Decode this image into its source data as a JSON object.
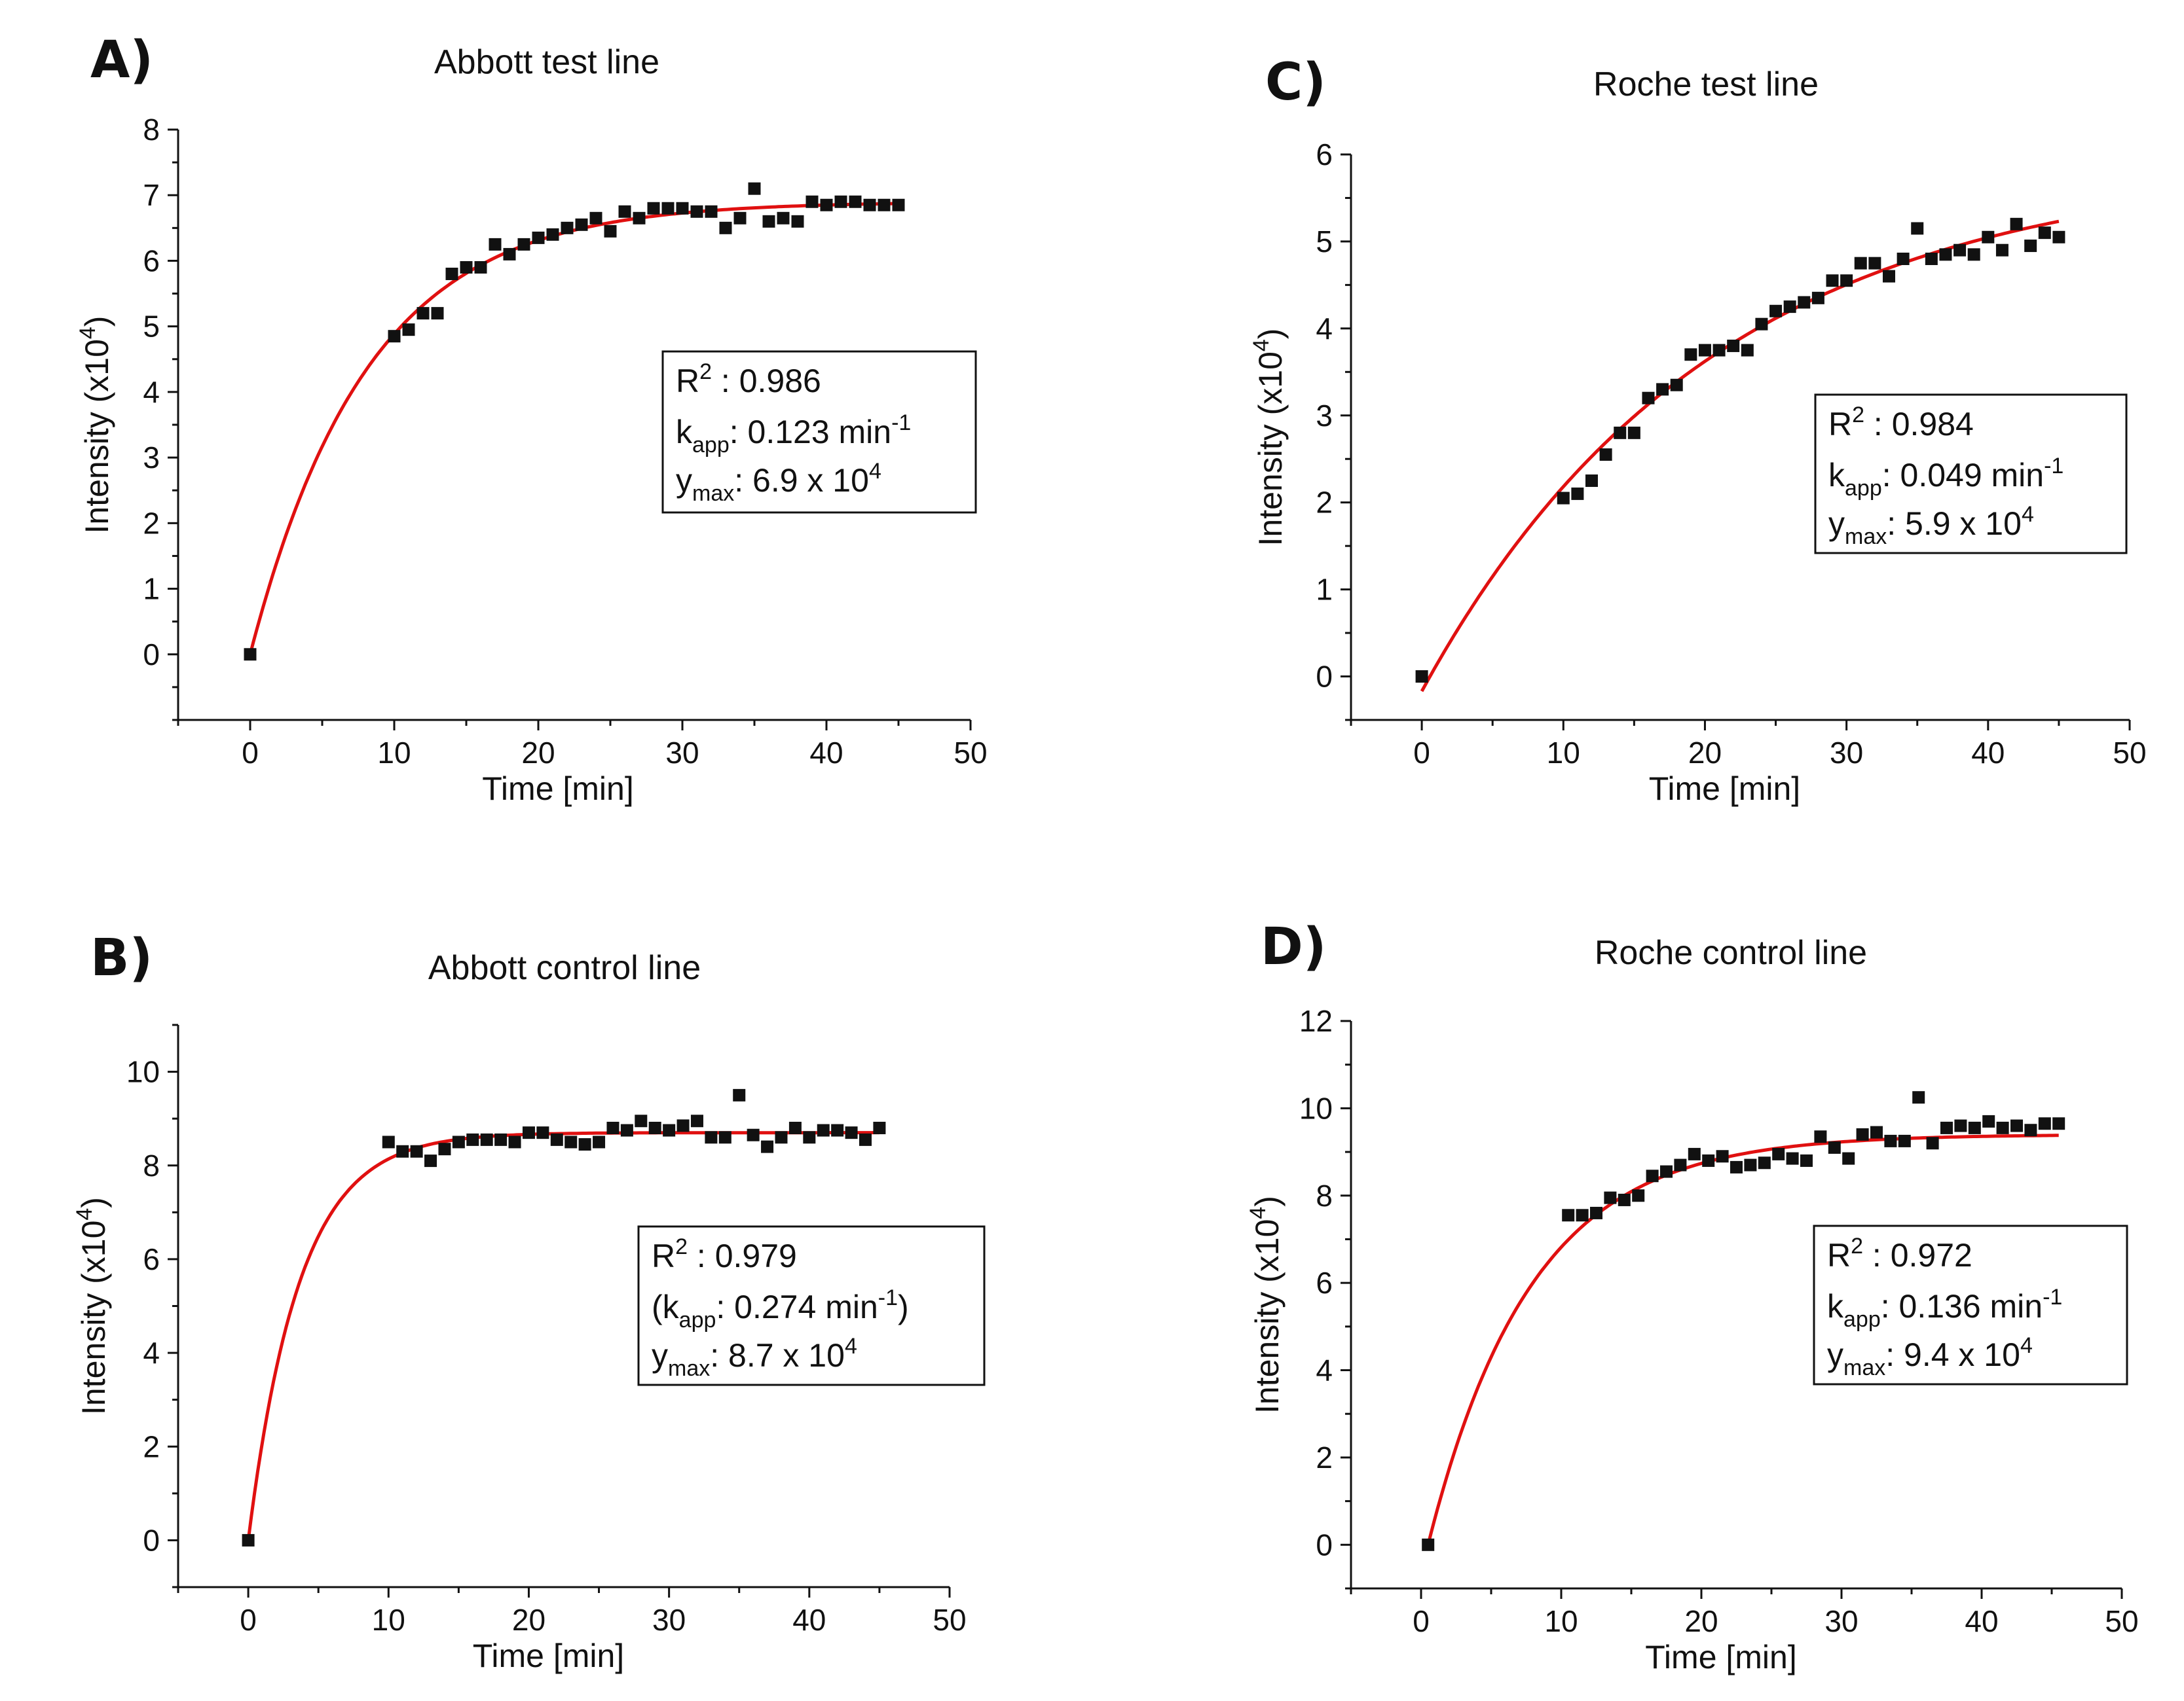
{
  "chart_data": [
    {
      "type": "scatter",
      "panel_label": "A)",
      "title": "Abbott test line",
      "xlabel": "Time [min]",
      "ylabel_main": "Intensity (x10",
      "ylabel_exp": "4",
      "ylabel_close": ")",
      "xlim": [
        -5,
        50
      ],
      "ylim": [
        -1,
        8
      ],
      "xticks": [
        0,
        10,
        20,
        30,
        40,
        50
      ],
      "yticks": [
        0,
        1,
        2,
        3,
        4,
        5,
        6,
        7,
        8
      ],
      "x": [
        0,
        10,
        11,
        12,
        13,
        14,
        15,
        16,
        17,
        18,
        19,
        20,
        21,
        22,
        23,
        24,
        25,
        26,
        27,
        28,
        29,
        30,
        31,
        32,
        33,
        34,
        35,
        36,
        37,
        38,
        39,
        40,
        41,
        42,
        43,
        44,
        45
      ],
      "y": [
        0,
        4.85,
        4.95,
        5.2,
        5.2,
        5.8,
        5.9,
        5.9,
        6.25,
        6.1,
        6.25,
        6.35,
        6.4,
        6.5,
        6.55,
        6.65,
        6.45,
        6.75,
        6.65,
        6.8,
        6.8,
        6.8,
        6.75,
        6.75,
        6.5,
        6.65,
        7.1,
        6.6,
        6.65,
        6.6,
        6.9,
        6.85,
        6.9,
        6.9,
        6.85,
        6.85,
        6.85
      ],
      "fit": {
        "model": "exponential-rise",
        "ymax": 6.9,
        "k": 0.123,
        "x0": 0,
        "x1": 45
      },
      "stats": {
        "r2_label": "R",
        "r2_exp": "2",
        "r2_sep": "  :  ",
        "r2_value": "0.986",
        "k_label": "k",
        "k_sub": "app",
        "k_text": ":  0.123 min",
        "k_exp": "-1",
        "k_close": "",
        "y_label": "y",
        "y_sub": "max",
        "y_text": ":  6.9 x 10",
        "y_exp": "4"
      }
    },
    {
      "type": "scatter",
      "panel_label": "B)",
      "title": "Abbott control line",
      "xlabel": "Time [min]",
      "ylabel_main": "Intensity (x10",
      "ylabel_exp": "4",
      "ylabel_close": ")",
      "xlim": [
        -5,
        50
      ],
      "ylim": [
        -1,
        11
      ],
      "xticks": [
        0,
        10,
        20,
        30,
        40,
        50
      ],
      "yticks": [
        0,
        2,
        4,
        6,
        8,
        10
      ],
      "x": [
        0,
        10,
        11,
        12,
        13,
        14,
        15,
        16,
        17,
        18,
        19,
        20,
        21,
        22,
        23,
        24,
        25,
        26,
        27,
        28,
        29,
        30,
        31,
        32,
        33,
        34,
        35,
        36,
        37,
        38,
        39,
        40,
        41,
        42,
        43,
        44,
        45
      ],
      "y": [
        0,
        8.5,
        8.3,
        8.3,
        8.1,
        8.35,
        8.5,
        8.55,
        8.55,
        8.55,
        8.5,
        8.7,
        8.7,
        8.55,
        8.5,
        8.45,
        8.5,
        8.8,
        8.75,
        8.95,
        8.8,
        8.75,
        8.85,
        8.95,
        8.6,
        8.6,
        9.5,
        8.65,
        8.4,
        8.6,
        8.8,
        8.6,
        8.75,
        8.75,
        8.7,
        8.55,
        8.8
      ],
      "fit": {
        "model": "exponential-rise",
        "ymax": 8.7,
        "k": 0.274,
        "x0": 0,
        "x1": 45
      },
      "stats": {
        "r2_label": "R",
        "r2_exp": "2",
        "r2_sep": "  :  ",
        "r2_value": "0.979",
        "k_label": "(k",
        "k_sub": "app",
        "k_text": ":  0.274 min",
        "k_exp": "-1",
        "k_close": ")",
        "y_label": "y",
        "y_sub": "max",
        "y_text": ":  8.7 x 10",
        "y_exp": "4"
      }
    },
    {
      "type": "scatter",
      "panel_label": "C)",
      "title": "Roche test line",
      "xlabel": "Time [min]",
      "ylabel_main": "Intensity (x10",
      "ylabel_exp": "4",
      "ylabel_close": ")",
      "xlim": [
        -5,
        50
      ],
      "ylim": [
        -0.5,
        6
      ],
      "xticks": [
        0,
        10,
        20,
        30,
        40,
        50
      ],
      "yticks": [
        0,
        1,
        2,
        3,
        4,
        5,
        6
      ],
      "x": [
        0,
        10,
        11,
        12,
        13,
        14,
        15,
        16,
        17,
        18,
        19,
        20,
        21,
        22,
        23,
        24,
        25,
        26,
        27,
        28,
        29,
        30,
        31,
        32,
        33,
        34,
        35,
        36,
        37,
        38,
        39,
        40,
        41,
        42,
        43,
        44,
        45
      ],
      "y": [
        0,
        2.05,
        2.1,
        2.25,
        2.55,
        2.8,
        2.8,
        3.2,
        3.3,
        3.35,
        3.7,
        3.75,
        3.75,
        3.8,
        3.75,
        4.05,
        4.2,
        4.25,
        4.3,
        4.35,
        4.55,
        4.55,
        4.75,
        4.75,
        4.6,
        4.8,
        5.15,
        4.8,
        4.85,
        4.9,
        4.85,
        5.05,
        4.9,
        5.2,
        4.95,
        5.1,
        5.05
      ],
      "fit": {
        "model": "exponential-rise",
        "ymax": 5.9,
        "k": 0.049,
        "x0": 0,
        "x1": 45,
        "offset": -0.17
      },
      "stats": {
        "r2_label": "R",
        "r2_exp": "2",
        "r2_sep": "  :  ",
        "r2_value": "0.984",
        "k_label": "k",
        "k_sub": "app",
        "k_text": ":  0.049 min",
        "k_exp": "-1",
        "k_close": "",
        "y_label": "y",
        "y_sub": "max",
        "y_text": ":  5.9 x 10",
        "y_exp": "4"
      }
    },
    {
      "type": "scatter",
      "panel_label": "D)",
      "title": "Roche control line",
      "xlabel": "Time [min]",
      "ylabel_main": "Intensity (x10",
      "ylabel_exp": "4",
      "ylabel_close": ")",
      "xlim": [
        -5,
        50
      ],
      "ylim": [
        -1,
        12
      ],
      "xticks": [
        0,
        10,
        20,
        30,
        40,
        50
      ],
      "yticks": [
        0,
        2,
        4,
        6,
        8,
        10,
        12
      ],
      "x": [
        0.5,
        10.5,
        11.5,
        12.5,
        13.5,
        14.5,
        15.5,
        16.5,
        17.5,
        18.5,
        19.5,
        20.5,
        21.5,
        22.5,
        23.5,
        24.5,
        25.5,
        26.5,
        27.5,
        28.5,
        29.5,
        30.5,
        31.5,
        32.5,
        33.5,
        34.5,
        35.5,
        36.5,
        37.5,
        38.5,
        39.5,
        40.5,
        41.5,
        42.5,
        43.5,
        44.5,
        45.5
      ],
      "y": [
        0,
        7.55,
        7.55,
        7.6,
        7.95,
        7.9,
        8.0,
        8.45,
        8.55,
        8.7,
        8.95,
        8.8,
        8.9,
        8.65,
        8.7,
        8.75,
        8.95,
        8.85,
        8.8,
        9.35,
        9.1,
        8.85,
        9.4,
        9.45,
        9.25,
        9.25,
        10.25,
        9.2,
        9.55,
        9.6,
        9.55,
        9.7,
        9.55,
        9.6,
        9.5,
        9.65,
        9.65
      ],
      "fit": {
        "model": "exponential-rise",
        "ymax": 9.4,
        "k": 0.136,
        "x0": 0.5,
        "x1": 45.5
      },
      "stats": {
        "r2_label": "R",
        "r2_exp": "2",
        "r2_sep": "  :  ",
        "r2_value": "0.972",
        "k_label": "k",
        "k_sub": "app",
        "k_text": ":  0.136 min",
        "k_exp": "-1",
        "k_close": "",
        "y_label": "y",
        "y_sub": "max",
        "y_text": ":  9.4 x 10",
        "y_exp": "4"
      }
    }
  ],
  "colors": {
    "fit_line": "#e01010",
    "points": "#111111",
    "axes": "#111111"
  }
}
